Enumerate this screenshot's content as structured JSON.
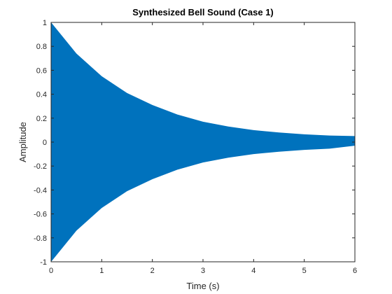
{
  "chart_data": {
    "type": "area",
    "title": "Synthesized Bell Sound (Case 1)",
    "xlabel": "Time (s)",
    "ylabel": "Amplitude",
    "xlim": [
      0,
      6
    ],
    "ylim": [
      -1,
      1
    ],
    "xticks": [
      "0",
      "1",
      "2",
      "3",
      "4",
      "5",
      "6"
    ],
    "yticks": [
      "1",
      "0.8",
      "0.6",
      "0.4",
      "0.2",
      "0",
      "-0.2",
      "-0.4",
      "-0.6",
      "-0.8",
      "-1"
    ],
    "grid": false,
    "series": [
      {
        "color": "#0072bd",
        "x": [
          0,
          0.5,
          1,
          1.5,
          2,
          2.5,
          3,
          3.5,
          4,
          4.5,
          5,
          5.5,
          6
        ],
        "upper": [
          1,
          0.74,
          0.55,
          0.41,
          0.31,
          0.23,
          0.17,
          0.13,
          0.1,
          0.08,
          0.065,
          0.055,
          0.05
        ],
        "lower": [
          -1,
          -0.74,
          -0.55,
          -0.41,
          -0.31,
          -0.23,
          -0.17,
          -0.13,
          -0.1,
          -0.08,
          -0.065,
          -0.055,
          -0.03
        ]
      }
    ]
  }
}
